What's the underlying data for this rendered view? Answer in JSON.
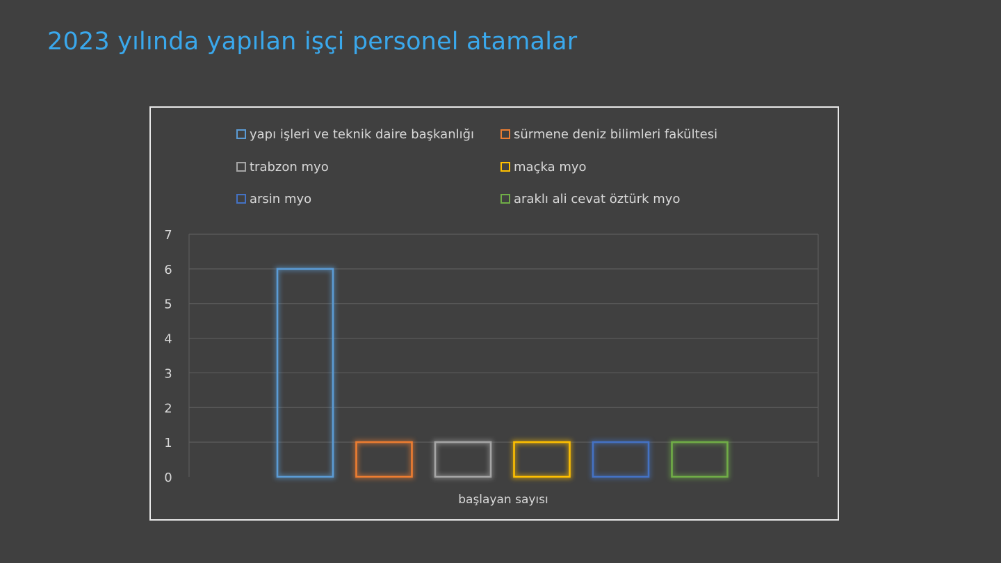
{
  "page": {
    "title": "2023 yılında yapılan işçi personel atamalar"
  },
  "chart_data": {
    "type": "bar",
    "categories": [
      "başlayan sayısı"
    ],
    "xlabel": "başlayan sayısı",
    "ylabel": "",
    "ylim": [
      0,
      7
    ],
    "yticks": [
      "0",
      "1",
      "2",
      "3",
      "4",
      "5",
      "6",
      "7"
    ],
    "grid": true,
    "legend_position": "top",
    "series": [
      {
        "name": "yapı işleri ve teknik daire başkanlığı",
        "values": [
          6
        ],
        "color": "#5B9BD5"
      },
      {
        "name": "sürmene deniz bilimleri fakültesi",
        "values": [
          1
        ],
        "color": "#ED7D31"
      },
      {
        "name": "trabzon myo",
        "values": [
          1
        ],
        "color": "#A5A5A5"
      },
      {
        "name": "maçka myo",
        "values": [
          1
        ],
        "color": "#FFC000"
      },
      {
        "name": "arsin myo",
        "values": [
          1
        ],
        "color": "#4472C4"
      },
      {
        "name": "araklı ali cevat öztürk myo",
        "values": [
          1
        ],
        "color": "#70AD47"
      }
    ]
  }
}
